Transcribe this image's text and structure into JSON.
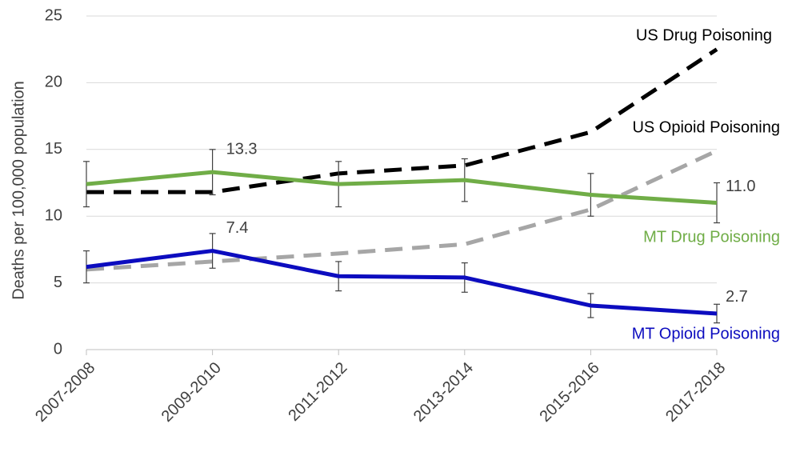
{
  "chart_data": {
    "type": "line",
    "y_label": "Deaths per 100,000 population",
    "categories": [
      "2007-2008",
      "2009-2010",
      "2011-2012",
      "2013-2014",
      "2015-2016",
      "2017-2018"
    ],
    "ylim": [
      0,
      25
    ],
    "yticks": [
      0,
      5,
      10,
      15,
      20,
      25
    ],
    "grid": true,
    "series": [
      {
        "name": "US Opioid Poisoning",
        "color": "#a6a6a6",
        "dashed": true,
        "values": [
          6.0,
          6.6,
          7.2,
          7.9,
          10.5,
          14.9
        ]
      },
      {
        "name": "US Drug Poisoning",
        "color": "#000000",
        "dashed": true,
        "values": [
          11.8,
          11.8,
          13.2,
          13.8,
          16.3,
          22.5
        ]
      },
      {
        "name": "MT Drug Poisoning",
        "color": "#70ad47",
        "dashed": false,
        "values": [
          12.4,
          13.3,
          12.4,
          12.7,
          11.6,
          11.0
        ],
        "errors": [
          1.7,
          1.7,
          1.7,
          1.6,
          1.6,
          1.5
        ],
        "value_labels": [
          null,
          "13.3",
          null,
          null,
          null,
          "11.0"
        ]
      },
      {
        "name": "MT Opioid Poisoning",
        "color": "#0c0cbf",
        "dashed": false,
        "values": [
          6.2,
          7.4,
          5.5,
          5.4,
          3.3,
          2.7
        ],
        "errors": [
          1.2,
          1.3,
          1.1,
          1.1,
          0.9,
          0.7
        ],
        "value_labels": [
          null,
          "7.4",
          null,
          null,
          null,
          "2.7"
        ]
      }
    ]
  }
}
